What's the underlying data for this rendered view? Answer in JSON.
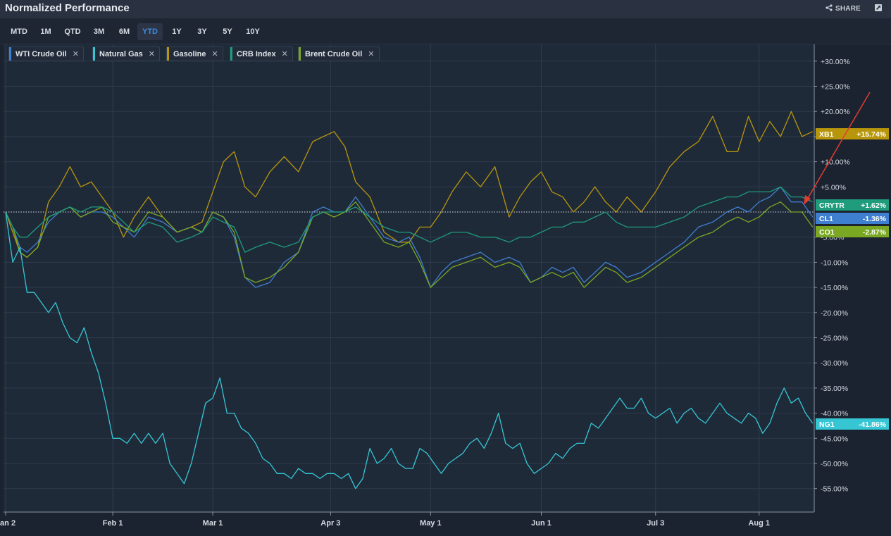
{
  "header": {
    "title": "Normalized Performance",
    "share_label": "SHARE"
  },
  "ranges": [
    {
      "label": "MTD",
      "active": false
    },
    {
      "label": "1M",
      "active": false
    },
    {
      "label": "QTD",
      "active": false
    },
    {
      "label": "3M",
      "active": false
    },
    {
      "label": "6M",
      "active": false
    },
    {
      "label": "YTD",
      "active": true
    },
    {
      "label": "1Y",
      "active": false
    },
    {
      "label": "3Y",
      "active": false
    },
    {
      "label": "5Y",
      "active": false
    },
    {
      "label": "10Y",
      "active": false
    }
  ],
  "legend_chips": [
    {
      "label": "WTI Crude Oil",
      "color": "#3f7fcf"
    },
    {
      "label": "Natural Gas",
      "color": "#36c6d3"
    },
    {
      "label": "Gasoline",
      "color": "#b8960c"
    },
    {
      "label": "CRB Index",
      "color": "#1e9c7b"
    },
    {
      "label": "Brent Crude Oil",
      "color": "#7aa822"
    }
  ],
  "chart_data": {
    "type": "line",
    "y_unit": "%",
    "ylim": [
      -58,
      33
    ],
    "yticks": [
      "+30.00%",
      "+25.00%",
      "+20.00%",
      "+15.00%",
      "+10.00%",
      "+5.00%",
      "-5.00%",
      "-10.00%",
      "-15.00%",
      "-20.00%",
      "-25.00%",
      "-30.00%",
      "-35.00%",
      "-40.00%",
      "-45.00%",
      "-50.00%",
      "-55.00%"
    ],
    "ytick_values": [
      30,
      25,
      20,
      15,
      10,
      5,
      -5,
      -10,
      -15,
      -20,
      -25,
      -30,
      -35,
      -40,
      -45,
      -50,
      -55
    ],
    "xticks": [
      "Jan 2",
      "Feb 1",
      "Mar 1",
      "Apr 3",
      "May 1",
      "Jun 1",
      "Jul 3",
      "Aug 1"
    ],
    "xtick_days": [
      0,
      30,
      58,
      91,
      119,
      150,
      182,
      211
    ],
    "xlim_days": [
      0,
      230
    ],
    "grid": true,
    "series": [
      {
        "name": "Gasoline",
        "ticker": "XB1",
        "last": "+15.74%",
        "color": "#b8960c",
        "x": [
          0,
          2,
          4,
          6,
          9,
          12,
          15,
          18,
          21,
          24,
          27,
          30,
          33,
          36,
          40,
          44,
          48,
          52,
          55,
          58,
          61,
          64,
          67,
          70,
          74,
          78,
          82,
          86,
          89,
          92,
          95,
          98,
          102,
          106,
          110,
          113,
          116,
          119,
          122,
          125,
          129,
          133,
          137,
          141,
          144,
          147,
          150,
          153,
          156,
          159,
          162,
          165,
          168,
          171,
          174,
          178,
          182,
          186,
          190,
          194,
          198,
          202,
          205,
          208,
          211,
          214,
          217,
          220,
          223,
          226
        ],
        "y": [
          0,
          -4,
          -8,
          -9,
          -7,
          2,
          5,
          9,
          5,
          6,
          3,
          0,
          -5,
          -1,
          3,
          -1,
          -4,
          -3,
          -2,
          4,
          10,
          12,
          5,
          3,
          8,
          11,
          8,
          14,
          15,
          16,
          13,
          6,
          3,
          -4,
          -6,
          -6,
          -3,
          -3,
          0,
          4,
          8,
          5,
          9,
          -1,
          3,
          6,
          8,
          4,
          3,
          0,
          2,
          5,
          2,
          0,
          3,
          0,
          4,
          9,
          12,
          14,
          19,
          12,
          12,
          19,
          14,
          18,
          15,
          20,
          15,
          16
        ]
      },
      {
        "name": "WTI Crude Oil",
        "ticker": "CL1",
        "last": "-1.36%",
        "color": "#3f7fcf",
        "x": [
          0,
          2,
          4,
          6,
          9,
          12,
          15,
          18,
          21,
          24,
          27,
          30,
          33,
          36,
          40,
          44,
          48,
          52,
          55,
          58,
          61,
          64,
          67,
          70,
          74,
          78,
          82,
          86,
          89,
          92,
          95,
          98,
          102,
          106,
          110,
          113,
          116,
          119,
          122,
          125,
          129,
          133,
          137,
          141,
          144,
          147,
          150,
          153,
          156,
          159,
          162,
          165,
          168,
          171,
          174,
          178,
          182,
          186,
          190,
          194,
          198,
          202,
          205,
          208,
          211,
          214,
          217,
          220,
          223,
          226
        ],
        "y": [
          0,
          -3,
          -7,
          -8,
          -6,
          -2,
          0,
          1,
          -1,
          0,
          0,
          -1,
          -3,
          -5,
          -1,
          -2,
          -4,
          -3,
          -4,
          0,
          -1,
          -5,
          -13,
          -15,
          -14,
          -10,
          -8,
          0,
          1,
          0,
          0,
          3,
          -1,
          -5,
          -6,
          -5,
          -9,
          -15,
          -12,
          -10,
          -9,
          -8,
          -10,
          -9,
          -10,
          -14,
          -13,
          -11,
          -12,
          -11,
          -14,
          -12,
          -10,
          -11,
          -13,
          -12,
          -10,
          -8,
          -6,
          -3,
          -2,
          0,
          1,
          0,
          2,
          3,
          5,
          2,
          2,
          -1
        ]
      },
      {
        "name": "Brent Crude Oil",
        "ticker": "CO1",
        "last": "-2.87%",
        "color": "#7aa822",
        "x": [
          0,
          2,
          4,
          6,
          9,
          12,
          15,
          18,
          21,
          24,
          27,
          30,
          33,
          36,
          40,
          44,
          48,
          52,
          55,
          58,
          61,
          64,
          67,
          70,
          74,
          78,
          82,
          86,
          89,
          92,
          95,
          98,
          102,
          106,
          110,
          113,
          116,
          119,
          122,
          125,
          129,
          133,
          137,
          141,
          144,
          147,
          150,
          153,
          156,
          159,
          162,
          165,
          168,
          171,
          174,
          178,
          182,
          186,
          190,
          194,
          198,
          202,
          205,
          208,
          211,
          214,
          217,
          220,
          223,
          226
        ],
        "y": [
          0,
          -3,
          -8,
          -9,
          -7,
          -1,
          0,
          1,
          -1,
          0,
          1,
          -2,
          -3,
          -4,
          0,
          -1,
          -4,
          -3,
          -4,
          0,
          -1,
          -4,
          -13,
          -14,
          -13,
          -11,
          -8,
          -1,
          0,
          -1,
          0,
          2,
          -2,
          -6,
          -7,
          -6,
          -10,
          -15,
          -13,
          -11,
          -10,
          -9,
          -11,
          -10,
          -11,
          -14,
          -13,
          -12,
          -13,
          -12,
          -15,
          -13,
          -11,
          -12,
          -14,
          -13,
          -11,
          -9,
          -7,
          -5,
          -4,
          -2,
          -1,
          -2,
          -1,
          1,
          2,
          0,
          0,
          -3
        ]
      },
      {
        "name": "CRB Index",
        "ticker": "CRYTR",
        "last": "+1.62%",
        "color": "#1e9c7b",
        "x": [
          0,
          2,
          4,
          6,
          9,
          12,
          15,
          18,
          21,
          24,
          27,
          30,
          33,
          36,
          40,
          44,
          48,
          52,
          55,
          58,
          61,
          64,
          67,
          70,
          74,
          78,
          82,
          86,
          89,
          92,
          95,
          98,
          102,
          106,
          110,
          113,
          116,
          119,
          122,
          125,
          129,
          133,
          137,
          141,
          144,
          147,
          150,
          153,
          156,
          159,
          162,
          165,
          168,
          171,
          174,
          178,
          182,
          186,
          190,
          194,
          198,
          202,
          205,
          208,
          211,
          214,
          217,
          220,
          223,
          226
        ],
        "y": [
          0,
          -3,
          -5,
          -5,
          -3,
          -1,
          0,
          1,
          0,
          1,
          1,
          0,
          -2,
          -4,
          -2,
          -3,
          -6,
          -5,
          -4,
          -1,
          -2,
          -3,
          -8,
          -7,
          -6,
          -7,
          -6,
          -1,
          0,
          0,
          0,
          1,
          -1,
          -3,
          -4,
          -4,
          -5,
          -6,
          -5,
          -4,
          -4,
          -5,
          -5,
          -6,
          -5,
          -5,
          -4,
          -3,
          -3,
          -2,
          -2,
          -1,
          0,
          -2,
          -3,
          -3,
          -3,
          -2,
          -1,
          1,
          2,
          3,
          3,
          4,
          4,
          4,
          5,
          3,
          3,
          2
        ]
      },
      {
        "name": "Natural Gas",
        "ticker": "NG1",
        "last": "-41.86%",
        "color": "#36c6d3",
        "x": [
          0,
          2,
          4,
          6,
          8,
          10,
          12,
          14,
          16,
          18,
          20,
          22,
          24,
          26,
          28,
          30,
          32,
          34,
          36,
          38,
          40,
          42,
          44,
          46,
          48,
          50,
          52,
          54,
          56,
          58,
          60,
          62,
          64,
          66,
          68,
          70,
          72,
          74,
          76,
          78,
          80,
          82,
          84,
          86,
          88,
          90,
          92,
          94,
          96,
          98,
          100,
          102,
          104,
          106,
          108,
          110,
          112,
          114,
          116,
          118,
          120,
          122,
          124,
          126,
          128,
          130,
          132,
          134,
          136,
          138,
          140,
          142,
          144,
          146,
          148,
          150,
          152,
          154,
          156,
          158,
          160,
          162,
          164,
          166,
          168,
          170,
          172,
          174,
          176,
          178,
          180,
          182,
          184,
          186,
          188,
          190,
          192,
          194,
          196,
          198,
          200,
          202,
          204,
          206,
          208,
          210,
          212,
          214,
          216,
          218,
          220,
          222,
          224,
          226
        ],
        "y": [
          0,
          -10,
          -7,
          -16,
          -16,
          -18,
          -20,
          -18,
          -22,
          -25,
          -26,
          -23,
          -28,
          -32,
          -38,
          -45,
          -45,
          -46,
          -44,
          -46,
          -44,
          -46,
          -44,
          -50,
          -52,
          -54,
          -50,
          -44,
          -38,
          -37,
          -33,
          -40,
          -40,
          -43,
          -44,
          -46,
          -49,
          -50,
          -52,
          -52,
          -53,
          -51,
          -52,
          -52,
          -53,
          -52,
          -52,
          -53,
          -52,
          -55,
          -53,
          -47,
          -50,
          -49,
          -47,
          -50,
          -51,
          -51,
          -47,
          -48,
          -50,
          -52,
          -50,
          -49,
          -48,
          -46,
          -45,
          -47,
          -44,
          -40,
          -46,
          -47,
          -46,
          -50,
          -52,
          -51,
          -50,
          -48,
          -49,
          -47,
          -46,
          -46,
          -42,
          -43,
          -41,
          -39,
          -37,
          -39,
          -39,
          -37,
          -40,
          -41,
          -40,
          -39,
          -42,
          -40,
          -39,
          -41,
          -42,
          -40,
          -38,
          -40,
          -41,
          -42,
          -40,
          -41,
          -44,
          -42,
          -38,
          -35,
          -38,
          -37,
          -40,
          -42
        ]
      }
    ]
  }
}
